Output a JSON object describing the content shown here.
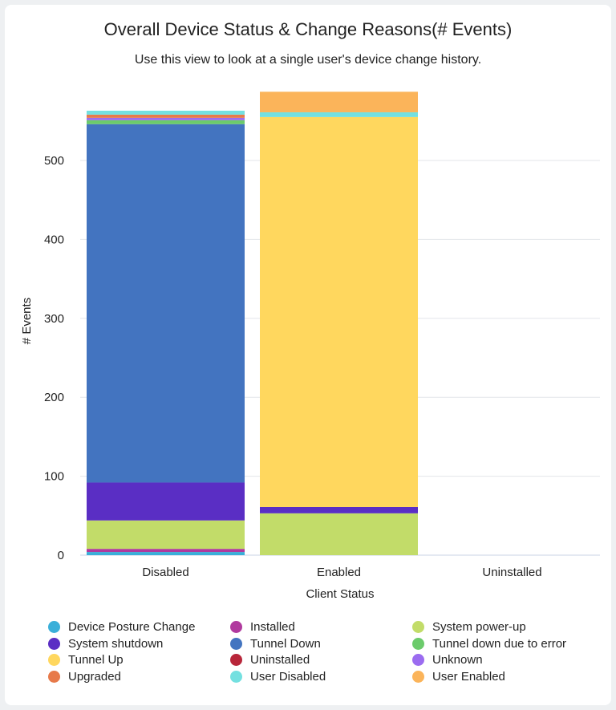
{
  "title": "Overall Device Status & Change Reasons(# Events)",
  "subtitle": "Use this view to look at a single user's device change history.",
  "chart_data": {
    "type": "bar",
    "stacked": true,
    "title": "Overall Device Status & Change Reasons(# Events)",
    "xlabel": "Client Status",
    "ylabel": "# Events",
    "categories": [
      "Disabled",
      "Enabled",
      "Uninstalled"
    ],
    "ylim": [
      0,
      600
    ],
    "yticks": [
      0,
      100,
      200,
      300,
      400,
      500
    ],
    "grid": true,
    "legend": "bottom",
    "series": [
      {
        "name": "Device Posture Change",
        "color": "#3aafd9",
        "values": [
          4,
          0,
          0
        ]
      },
      {
        "name": "Installed",
        "color": "#b03a9e",
        "values": [
          4,
          0,
          0
        ]
      },
      {
        "name": "System power-up",
        "color": "#c2dc69",
        "values": [
          36,
          53,
          0
        ]
      },
      {
        "name": "System shutdown",
        "color": "#5a2ec4",
        "values": [
          48,
          8,
          0
        ]
      },
      {
        "name": "Tunnel Down",
        "color": "#4374c0",
        "values": [
          454,
          0,
          0
        ]
      },
      {
        "name": "Tunnel down due to error",
        "color": "#6ccb6c",
        "values": [
          5,
          0,
          0
        ]
      },
      {
        "name": "Tunnel Up",
        "color": "#ffd75e",
        "values": [
          0,
          494,
          0
        ]
      },
      {
        "name": "Uninstalled",
        "color": "#b8263a",
        "values": [
          0,
          0,
          0
        ]
      },
      {
        "name": "Unknown",
        "color": "#9b6cf0",
        "values": [
          3,
          0,
          0
        ]
      },
      {
        "name": "Upgraded",
        "color": "#e77a4a",
        "values": [
          4,
          0,
          0
        ]
      },
      {
        "name": "User Disabled",
        "color": "#74e0e0",
        "values": [
          5,
          6,
          0
        ]
      },
      {
        "name": "User Enabled",
        "color": "#fbb45a",
        "values": [
          0,
          26,
          0
        ]
      }
    ]
  }
}
